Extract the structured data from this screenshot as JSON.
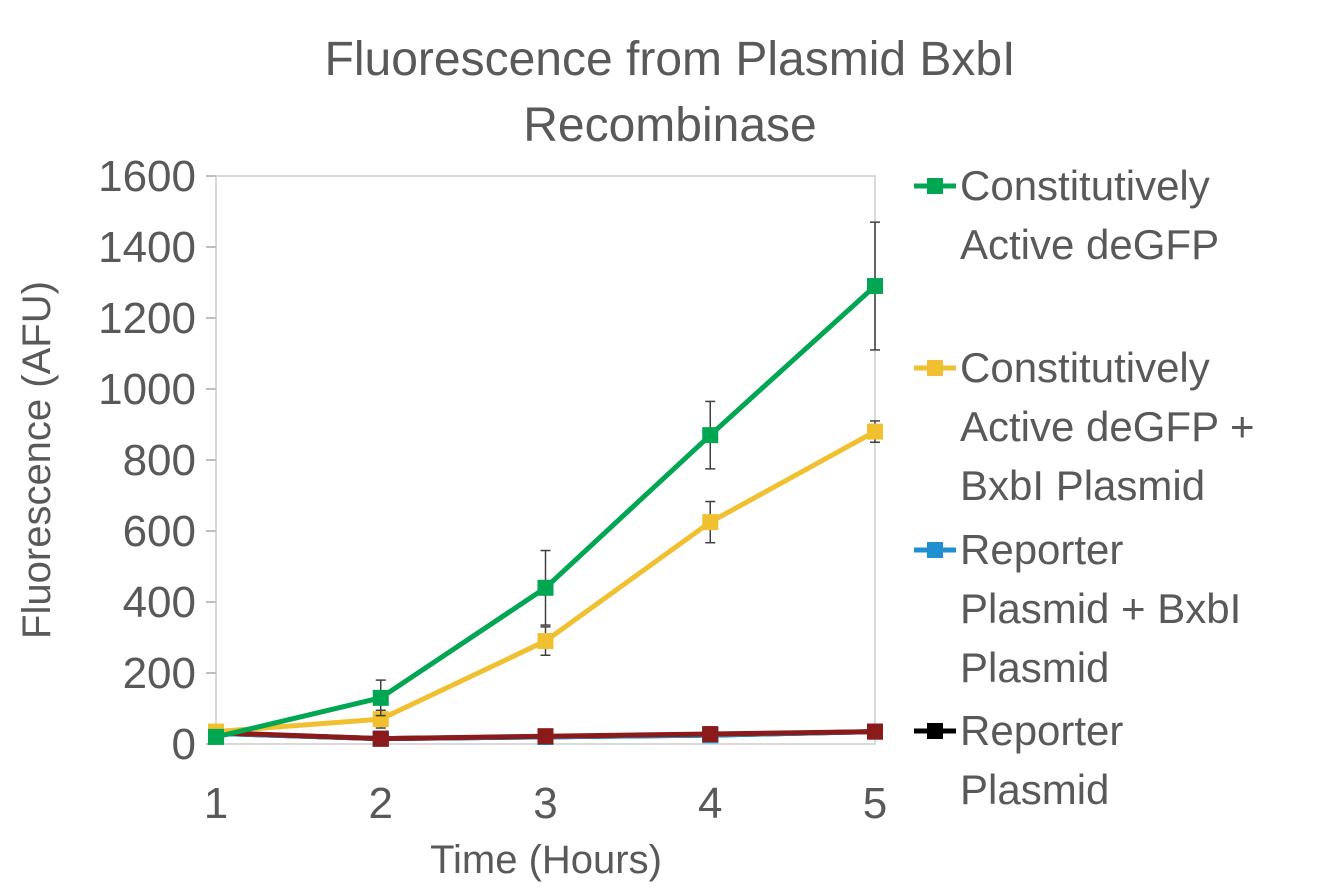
{
  "chart_data": {
    "type": "line",
    "title_lines": [
      "Fluorescence from Plasmid BxbI",
      "Recombinase"
    ],
    "xlabel": "Time (Hours)",
    "ylabel": "Fluorescence (AFU)",
    "x": [
      1,
      2,
      3,
      4,
      5
    ],
    "xlim": [
      1,
      5
    ],
    "ylim": [
      0,
      1600
    ],
    "x_ticks": [
      "1",
      "2",
      "3",
      "4",
      "5"
    ],
    "y_ticks": [
      "0",
      "200",
      "400",
      "600",
      "800",
      "1000",
      "1200",
      "1400",
      "1600"
    ],
    "y_tick_values": [
      0,
      200,
      400,
      600,
      800,
      1000,
      1200,
      1400,
      1600
    ],
    "grid": false,
    "legend_position": "right",
    "series": [
      {
        "name": "Constitutively Active deGFP",
        "name_lines": [
          "Constitutively",
          "Active deGFP"
        ],
        "color": "#00A651",
        "values": [
          20,
          130,
          440,
          870,
          1290
        ],
        "errors": [
          8,
          50,
          105,
          95,
          180
        ]
      },
      {
        "name": "Constitutively Active deGFP + BxbI Plasmid",
        "name_lines": [
          "Constitutively",
          "Active deGFP +",
          "BxbI Plasmid"
        ],
        "color": "#F0C030",
        "values": [
          35,
          70,
          290,
          625,
          880
        ],
        "errors": [
          6,
          25,
          40,
          58,
          30
        ]
      },
      {
        "name": "Reporter Plasmid + BxbI Plasmid",
        "name_lines": [
          "Reporter",
          "Plasmid + BxbI",
          "Plasmid"
        ],
        "color": "#1F8FD0",
        "values": [
          30,
          15,
          20,
          25,
          35
        ],
        "errors": [
          5,
          5,
          6,
          8,
          8
        ]
      },
      {
        "name": "Reporter Plasmid",
        "name_lines": [
          "Reporter",
          "Plasmid"
        ],
        "color": "#000000",
        "values": [
          30,
          15,
          20,
          25,
          35
        ],
        "errors": [
          5,
          5,
          6,
          8,
          8
        ]
      },
      {
        "name": "",
        "name_lines": [],
        "color": "#8B1A1A",
        "values": [
          32,
          15,
          22,
          28,
          35
        ],
        "errors": [
          5,
          5,
          6,
          8,
          8
        ]
      }
    ]
  }
}
